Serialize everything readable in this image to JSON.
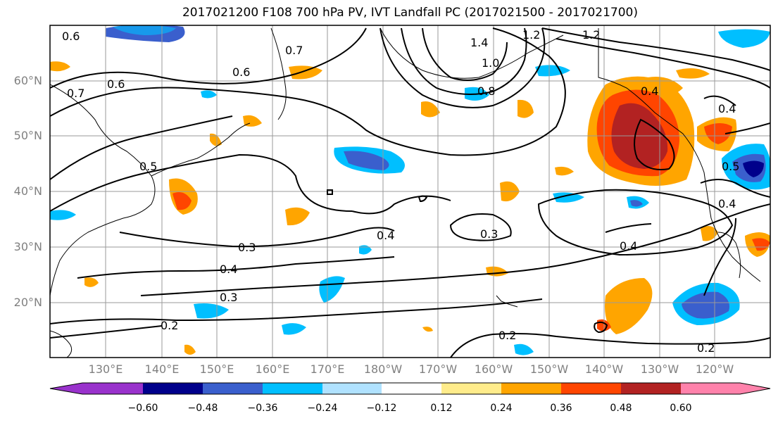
{
  "title": "2017021200 F108 700 hPa PV, IVT Landfall PC (2017021500 - 2017021700)",
  "lat_labels": [
    "60°N",
    "50°N",
    "40°N",
    "30°N",
    "20°N"
  ],
  "lon_labels": [
    "130°E",
    "140°E",
    "150°E",
    "160°E",
    "170°E",
    "180°W",
    "170°W",
    "160°W",
    "150°W",
    "140°W",
    "130°W",
    "120°W"
  ],
  "colorbar": {
    "ticks": [
      "−0.60",
      "−0.48",
      "−0.36",
      "−0.24",
      "−0.12",
      "0.12",
      "0.24",
      "0.36",
      "0.48",
      "0.60"
    ],
    "colors": [
      "#9932cc",
      "#00008b",
      "#3a5fcd",
      "#00bfff",
      "#b0e2ff",
      "#ffffff",
      "#ffec8b",
      "#ffa500",
      "#ff4500",
      "#b22222",
      "#ff82ab"
    ]
  },
  "contour_labels": [
    "0.6",
    "0.7",
    "0.6",
    "0.6",
    "0.7",
    "0.5",
    "1.4",
    "1.2",
    "1.2",
    "1.0",
    "0.8",
    "0.4",
    "0.4",
    "0.5",
    "0.4",
    "0.3",
    "0.4",
    "0.3",
    "0.4",
    "0.3",
    "0.4",
    "0.2",
    "0.2",
    "0.2"
  ],
  "legend_colors": {
    "neg_strong": "#00008b",
    "neg_mid": "#3a5fcd",
    "neg_weak": "#00bfff",
    "pos_weak": "#ffa500",
    "pos_mid": "#ff4500",
    "pos_strong": "#b22222"
  }
}
